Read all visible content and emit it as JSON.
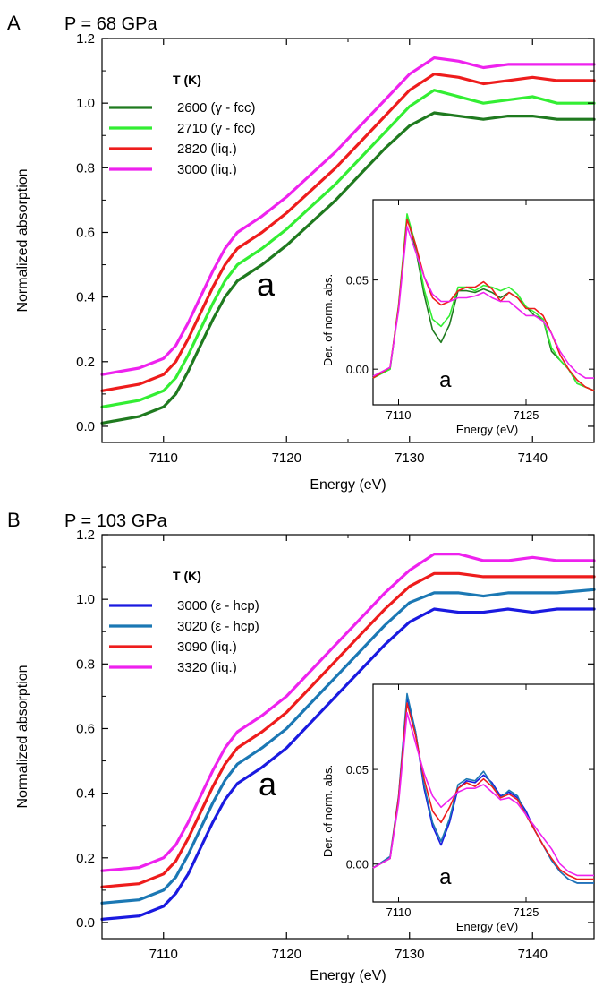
{
  "colors": {
    "dark_green": "#1f7a1f",
    "light_green": "#33ee33",
    "red": "#ee1c1c",
    "magenta": "#ee22ee",
    "blue": "#1a1ae0",
    "steel_blue": "#1b78b4",
    "axis": "#000000"
  },
  "chart_data": [
    {
      "type": "line",
      "panel_label": "A",
      "title": "P = 68 GPa",
      "xlabel": "Energy (eV)",
      "ylabel": "Normalized absorption",
      "xlim": [
        7105,
        7145
      ],
      "ylim": [
        -0.05,
        1.2
      ],
      "xticks": [
        7110,
        7120,
        7130,
        7140
      ],
      "yticks": [
        0.0,
        0.2,
        0.4,
        0.6,
        0.8,
        1.0,
        1.2
      ],
      "xtick_labels": [
        "7110",
        "7120",
        "7130",
        "7140"
      ],
      "ytick_labels": [
        "0.0",
        "0.2",
        "0.4",
        "0.6",
        "0.8",
        "1.0",
        "1.2"
      ],
      "legend_title": "T (K)",
      "legend_position": "top-left",
      "annotation": "a",
      "x": [
        7105,
        7108,
        7110,
        7111,
        7112,
        7113,
        7114,
        7115,
        7116,
        7118,
        7120,
        7122,
        7124,
        7126,
        7128,
        7130,
        7132,
        7134,
        7136,
        7138,
        7140,
        7142,
        7145
      ],
      "series": [
        {
          "name": "2600 (γ - fcc)",
          "color_key": "dark_green",
          "values": [
            0.01,
            0.03,
            0.06,
            0.1,
            0.17,
            0.25,
            0.33,
            0.4,
            0.45,
            0.5,
            0.56,
            0.63,
            0.7,
            0.78,
            0.86,
            0.93,
            0.97,
            0.96,
            0.95,
            0.96,
            0.96,
            0.95,
            0.95
          ]
        },
        {
          "name": "2710 (γ - fcc)",
          "color_key": "light_green",
          "values": [
            0.06,
            0.08,
            0.11,
            0.15,
            0.22,
            0.3,
            0.38,
            0.45,
            0.5,
            0.55,
            0.61,
            0.68,
            0.75,
            0.83,
            0.91,
            0.99,
            1.04,
            1.02,
            1.0,
            1.01,
            1.02,
            1.0,
            1.0
          ]
        },
        {
          "name": "2820 (liq.)",
          "color_key": "red",
          "values": [
            0.11,
            0.13,
            0.16,
            0.2,
            0.27,
            0.35,
            0.43,
            0.5,
            0.55,
            0.6,
            0.66,
            0.73,
            0.8,
            0.88,
            0.96,
            1.04,
            1.09,
            1.08,
            1.06,
            1.07,
            1.08,
            1.07,
            1.07
          ]
        },
        {
          "name": "3000 (liq.)",
          "color_key": "magenta",
          "values": [
            0.16,
            0.18,
            0.21,
            0.25,
            0.32,
            0.4,
            0.48,
            0.55,
            0.6,
            0.65,
            0.71,
            0.78,
            0.85,
            0.93,
            1.01,
            1.09,
            1.14,
            1.13,
            1.11,
            1.12,
            1.12,
            1.12,
            1.12
          ]
        }
      ],
      "inset": {
        "xlabel": "Energy (eV)",
        "ylabel": "Der. of norm. abs.",
        "xlim": [
          7107,
          7133
        ],
        "ylim": [
          -0.02,
          0.095
        ],
        "xticks": [
          7110,
          7125
        ],
        "yticks": [
          0.0,
          0.05
        ],
        "xtick_labels": [
          "7110",
          "7125"
        ],
        "ytick_labels": [
          "0.00",
          "0.05"
        ],
        "annotation": "a",
        "x": [
          7107,
          7109,
          7110,
          7111,
          7112,
          7113,
          7114,
          7115,
          7116,
          7117,
          7118,
          7119,
          7120,
          7121,
          7122,
          7123,
          7124,
          7125,
          7126,
          7127,
          7128,
          7129,
          7130,
          7131,
          7132,
          7133
        ],
        "series": [
          {
            "name": "2600 (γ - fcc)",
            "color_key": "dark_green",
            "values": [
              -0.005,
              0.0,
              0.035,
              0.085,
              0.068,
              0.042,
              0.022,
              0.015,
              0.025,
              0.044,
              0.044,
              0.043,
              0.045,
              0.043,
              0.04,
              0.043,
              0.04,
              0.035,
              0.03,
              0.028,
              0.01,
              0.005,
              0.0,
              -0.008,
              -0.01,
              -0.012
            ]
          },
          {
            "name": "2710 (γ - fcc)",
            "color_key": "light_green",
            "values": [
              -0.005,
              0.0,
              0.036,
              0.087,
              0.07,
              0.045,
              0.028,
              0.024,
              0.03,
              0.046,
              0.046,
              0.044,
              0.047,
              0.046,
              0.044,
              0.046,
              0.042,
              0.035,
              0.032,
              0.028,
              0.012,
              0.005,
              0.0,
              -0.008,
              -0.01,
              -0.012
            ]
          },
          {
            "name": "2820 (liq.)",
            "color_key": "red",
            "values": [
              -0.005,
              0.001,
              0.035,
              0.084,
              0.07,
              0.052,
              0.04,
              0.036,
              0.038,
              0.044,
              0.046,
              0.046,
              0.049,
              0.045,
              0.038,
              0.043,
              0.04,
              0.034,
              0.034,
              0.03,
              0.02,
              0.008,
              0.0,
              -0.006,
              -0.01,
              -0.012
            ]
          },
          {
            "name": "3000 (liq.)",
            "color_key": "magenta",
            "values": [
              -0.004,
              0.001,
              0.033,
              0.08,
              0.066,
              0.052,
              0.042,
              0.038,
              0.038,
              0.04,
              0.04,
              0.041,
              0.043,
              0.04,
              0.038,
              0.038,
              0.034,
              0.03,
              0.03,
              0.027,
              0.02,
              0.01,
              0.003,
              -0.002,
              -0.005,
              -0.005
            ]
          }
        ]
      }
    },
    {
      "type": "line",
      "panel_label": "B",
      "title": "P = 103 GPa",
      "xlabel": "Energy (eV)",
      "ylabel": "Normalized absorption",
      "xlim": [
        7105,
        7145
      ],
      "ylim": [
        -0.05,
        1.2
      ],
      "xticks": [
        7110,
        7120,
        7130,
        7140
      ],
      "yticks": [
        0.0,
        0.2,
        0.4,
        0.6,
        0.8,
        1.0,
        1.2
      ],
      "xtick_labels": [
        "7110",
        "7120",
        "7130",
        "7140"
      ],
      "ytick_labels": [
        "0.0",
        "0.2",
        "0.4",
        "0.6",
        "0.8",
        "1.0",
        "1.2"
      ],
      "legend_title": "T (K)",
      "legend_position": "top-left",
      "annotation": "a",
      "x": [
        7105,
        7108,
        7110,
        7111,
        7112,
        7113,
        7114,
        7115,
        7116,
        7118,
        7120,
        7122,
        7124,
        7126,
        7128,
        7130,
        7132,
        7134,
        7136,
        7138,
        7140,
        7142,
        7145
      ],
      "series": [
        {
          "name": "3000 (ε - hcp)",
          "color_key": "blue",
          "values": [
            0.01,
            0.02,
            0.05,
            0.09,
            0.15,
            0.23,
            0.31,
            0.38,
            0.43,
            0.48,
            0.54,
            0.62,
            0.7,
            0.78,
            0.86,
            0.93,
            0.97,
            0.96,
            0.96,
            0.97,
            0.96,
            0.97,
            0.97
          ]
        },
        {
          "name": "3020 (ε - hcp)",
          "color_key": "steel_blue",
          "values": [
            0.06,
            0.07,
            0.1,
            0.14,
            0.21,
            0.29,
            0.37,
            0.44,
            0.49,
            0.54,
            0.6,
            0.68,
            0.76,
            0.84,
            0.92,
            0.99,
            1.02,
            1.02,
            1.01,
            1.02,
            1.02,
            1.02,
            1.03
          ]
        },
        {
          "name": "3090 (liq.)",
          "color_key": "red",
          "values": [
            0.11,
            0.12,
            0.15,
            0.19,
            0.26,
            0.34,
            0.42,
            0.49,
            0.54,
            0.59,
            0.65,
            0.73,
            0.81,
            0.89,
            0.97,
            1.04,
            1.08,
            1.08,
            1.07,
            1.07,
            1.07,
            1.07,
            1.07
          ]
        },
        {
          "name": "3320 (liq.)",
          "color_key": "magenta",
          "values": [
            0.16,
            0.17,
            0.2,
            0.24,
            0.31,
            0.39,
            0.47,
            0.54,
            0.59,
            0.64,
            0.7,
            0.78,
            0.86,
            0.94,
            1.02,
            1.09,
            1.14,
            1.14,
            1.12,
            1.12,
            1.13,
            1.12,
            1.12
          ]
        }
      ],
      "inset": {
        "xlabel": "Energy (eV)",
        "ylabel": "Der. of norm. abs.",
        "xlim": [
          7107,
          7133
        ],
        "ylim": [
          -0.02,
          0.095
        ],
        "xticks": [
          7110,
          7125
        ],
        "yticks": [
          0.0,
          0.05
        ],
        "xtick_labels": [
          "7110",
          "7125"
        ],
        "ytick_labels": [
          "0.00",
          "0.05"
        ],
        "annotation": "a",
        "x": [
          7107,
          7109,
          7110,
          7111,
          7112,
          7113,
          7114,
          7115,
          7116,
          7117,
          7118,
          7119,
          7120,
          7121,
          7122,
          7123,
          7124,
          7125,
          7126,
          7127,
          7128,
          7129,
          7130,
          7131,
          7132,
          7133
        ],
        "series": [
          {
            "name": "3000 (ε - hcp)",
            "color_key": "blue",
            "values": [
              -0.002,
              0.003,
              0.035,
              0.088,
              0.07,
              0.04,
              0.02,
              0.01,
              0.022,
              0.04,
              0.044,
              0.043,
              0.047,
              0.043,
              0.036,
              0.038,
              0.035,
              0.028,
              0.018,
              0.01,
              0.002,
              -0.004,
              -0.008,
              -0.01,
              -0.01,
              -0.01
            ]
          },
          {
            "name": "3020 (ε - hcp)",
            "color_key": "steel_blue",
            "values": [
              -0.002,
              0.004,
              0.036,
              0.09,
              0.07,
              0.042,
              0.022,
              0.012,
              0.024,
              0.042,
              0.045,
              0.044,
              0.049,
              0.042,
              0.035,
              0.039,
              0.036,
              0.026,
              0.018,
              0.01,
              0.002,
              -0.004,
              -0.008,
              -0.01,
              -0.01,
              -0.01
            ]
          },
          {
            "name": "3090 (liq.)",
            "color_key": "red",
            "values": [
              -0.002,
              0.003,
              0.035,
              0.085,
              0.068,
              0.045,
              0.028,
              0.022,
              0.03,
              0.04,
              0.043,
              0.041,
              0.045,
              0.041,
              0.035,
              0.037,
              0.034,
              0.026,
              0.018,
              0.01,
              0.003,
              -0.003,
              -0.006,
              -0.008,
              -0.008,
              -0.008
            ]
          },
          {
            "name": "3320 (liq.)",
            "color_key": "magenta",
            "values": [
              -0.002,
              0.003,
              0.032,
              0.08,
              0.064,
              0.048,
              0.036,
              0.03,
              0.034,
              0.038,
              0.04,
              0.04,
              0.042,
              0.038,
              0.034,
              0.035,
              0.032,
              0.026,
              0.02,
              0.014,
              0.008,
              0.0,
              -0.004,
              -0.006,
              -0.006,
              -0.006
            ]
          }
        ]
      }
    }
  ]
}
